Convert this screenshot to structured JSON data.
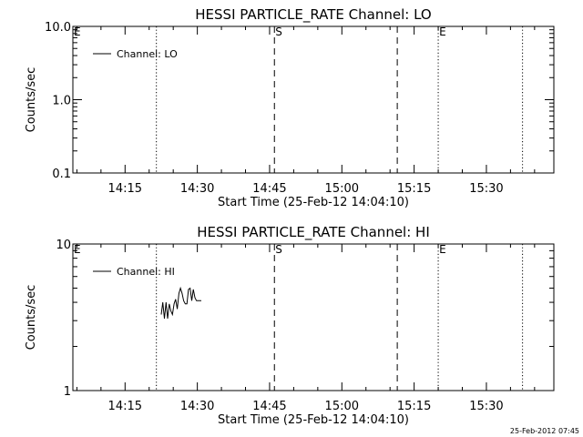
{
  "footer": {
    "timestamp": "25-Feb-2012 07:45"
  },
  "chart_data": [
    {
      "type": "line",
      "title": "HESSI PARTICLE_RATE Channel: LO",
      "xlabel": "Start Time (25-Feb-12 14:04:10)",
      "ylabel": "Counts/sec",
      "yscale": "log",
      "ylim": [
        0.1,
        10.0
      ],
      "yticks": [
        {
          "label": "0.1",
          "value": 0.1
        },
        {
          "label": "1.0",
          "value": 1.0
        },
        {
          "label": "10.0",
          "value": 10.0
        }
      ],
      "xlim": [
        "14:04:10",
        "15:44:00"
      ],
      "xticks": [
        {
          "label": "14:15",
          "value": "14:15"
        },
        {
          "label": "14:30",
          "value": "14:30"
        },
        {
          "label": "14:45",
          "value": "14:45"
        },
        {
          "label": "15:00",
          "value": "15:00"
        },
        {
          "label": "15:15",
          "value": "15:15"
        },
        {
          "label": "15:30",
          "value": "15:30"
        }
      ],
      "legend": {
        "placement": "top-left",
        "label": "Channel: LO"
      },
      "series": [
        {
          "name": "Channel: LO",
          "x": [],
          "y": []
        }
      ],
      "markers": [
        {
          "label": "E",
          "time": "14:04:10",
          "style": "none"
        },
        {
          "label": "",
          "time": "14:21:30",
          "style": "dotted"
        },
        {
          "label": "S",
          "time": "14:46:00",
          "style": "dashed"
        },
        {
          "label": "",
          "time": "15:11:30",
          "style": "dashed"
        },
        {
          "label": "E",
          "time": "15:20:00",
          "style": "dotted"
        },
        {
          "label": "",
          "time": "15:37:30",
          "style": "dotted"
        }
      ]
    },
    {
      "type": "line",
      "title": "HESSI PARTICLE_RATE Channel: HI",
      "xlabel": "Start Time (25-Feb-12 14:04:10)",
      "ylabel": "Counts/sec",
      "yscale": "log",
      "ylim": [
        1,
        10
      ],
      "yticks": [
        {
          "label": "1",
          "value": 1
        },
        {
          "label": "10",
          "value": 10
        }
      ],
      "xlim": [
        "14:04:10",
        "15:44:00"
      ],
      "xticks": [
        {
          "label": "14:15",
          "value": "14:15"
        },
        {
          "label": "14:30",
          "value": "14:30"
        },
        {
          "label": "14:45",
          "value": "14:45"
        },
        {
          "label": "15:00",
          "value": "15:00"
        },
        {
          "label": "15:15",
          "value": "15:15"
        },
        {
          "label": "15:30",
          "value": "15:30"
        }
      ],
      "legend": {
        "placement": "top-left",
        "label": "Channel: HI"
      },
      "series": [
        {
          "name": "Channel: HI",
          "x": [
            "14:22:30",
            "14:22:50",
            "14:23:10",
            "14:23:30",
            "14:23:50",
            "14:24:10",
            "14:24:30",
            "14:24:50",
            "14:25:10",
            "14:25:30",
            "14:25:50",
            "14:26:10",
            "14:26:30",
            "14:26:50",
            "14:27:10",
            "14:27:30",
            "14:27:50",
            "14:28:10",
            "14:28:30",
            "14:28:50",
            "14:29:10",
            "14:29:30",
            "14:29:50",
            "14:30:10",
            "14:30:30",
            "14:30:50"
          ],
          "y": [
            3.3,
            4.0,
            3.1,
            4.0,
            3.1,
            3.9,
            3.5,
            3.3,
            3.9,
            4.2,
            3.6,
            4.6,
            5.0,
            4.6,
            4.1,
            3.9,
            3.9,
            4.9,
            5.0,
            4.1,
            4.9,
            4.3,
            4.1,
            4.1,
            4.1,
            4.1
          ]
        }
      ],
      "markers": [
        {
          "label": "E",
          "time": "14:04:10",
          "style": "none"
        },
        {
          "label": "",
          "time": "14:21:30",
          "style": "dotted"
        },
        {
          "label": "S",
          "time": "14:46:00",
          "style": "dashed"
        },
        {
          "label": "",
          "time": "15:11:30",
          "style": "dashed"
        },
        {
          "label": "E",
          "time": "15:20:00",
          "style": "dotted"
        },
        {
          "label": "",
          "time": "15:37:30",
          "style": "dotted"
        }
      ]
    }
  ]
}
